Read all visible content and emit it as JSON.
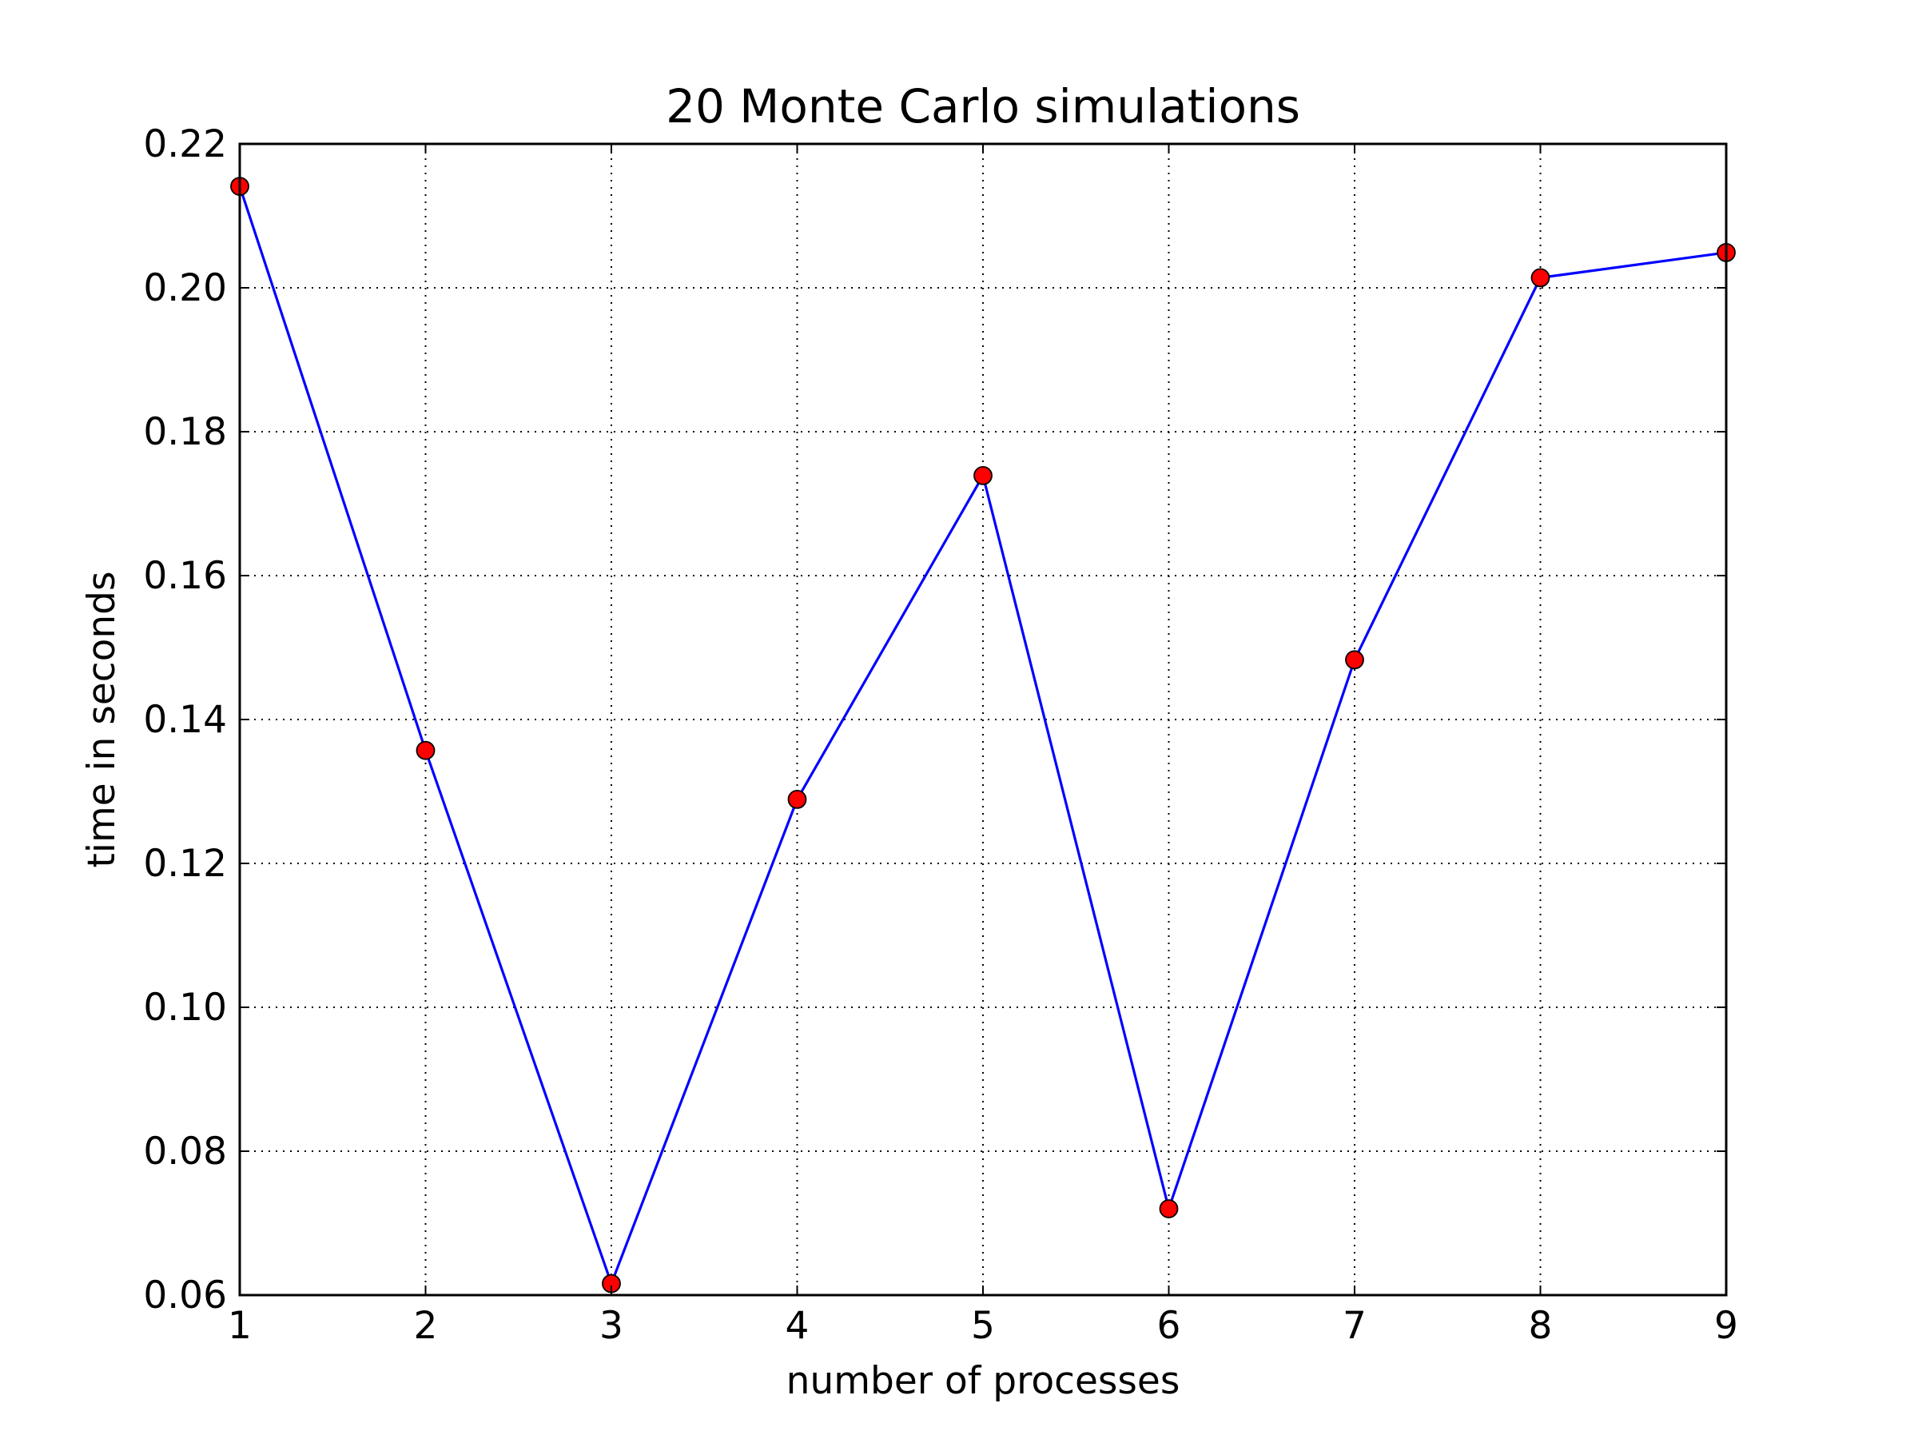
{
  "chart_data": {
    "type": "line",
    "title": "20 Monte Carlo simulations",
    "xlabel": "number of processes",
    "ylabel": "time in seconds",
    "x": [
      1,
      2,
      3,
      4,
      5,
      6,
      7,
      8,
      9
    ],
    "xlim": [
      1,
      9
    ],
    "ylim": [
      0.06,
      0.22
    ],
    "x_ticks": [
      "1",
      "2",
      "3",
      "4",
      "5",
      "6",
      "7",
      "8",
      "9"
    ],
    "y_ticks": [
      "0.06",
      "0.08",
      "0.10",
      "0.12",
      "0.14",
      "0.16",
      "0.18",
      "0.20",
      "0.22"
    ],
    "grid": true,
    "series": [
      {
        "values": [
          0.2141,
          0.1357,
          0.0616,
          0.1289,
          0.1739,
          0.072,
          0.1483,
          0.2014,
          0.2049
        ],
        "line_color": "#0000ff",
        "marker_color": "#ff0000",
        "marker": "circle"
      }
    ]
  }
}
